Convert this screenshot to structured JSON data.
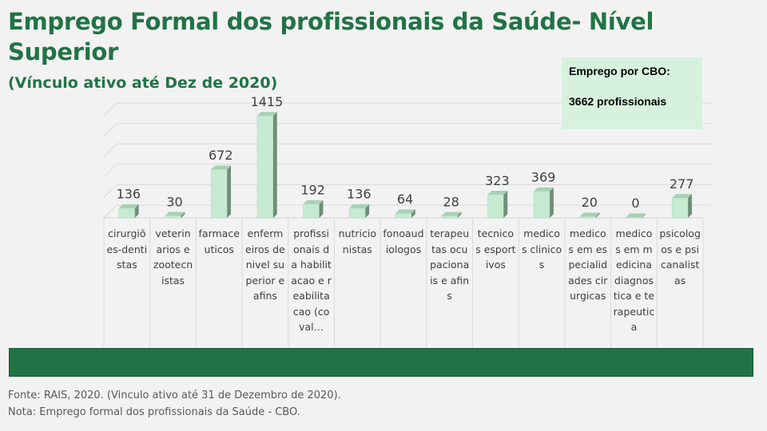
{
  "header": {
    "title": "Emprego Formal dos profissionais da Saúde-  Nível Superior",
    "subtitle": "(Vínculo ativo até Dez de 2020)"
  },
  "infobox": {
    "line1": "Emprego por CBO:",
    "line2": "3662 profissionais"
  },
  "footer": {
    "source": "Fonte: RAIS, 2020. (Vinculo ativo até 31 de Dezembro de 2020).",
    "note": "Nota: Emprego formal dos profissionais da Saúde - CBO."
  },
  "colors": {
    "title": "#217346",
    "bar_front": "#c6e9d2",
    "bar_side": "#6e8f78",
    "bar_top": "#a7d1b4",
    "band": "#217346"
  },
  "chart_data": {
    "type": "bar",
    "categories": [
      "cirurgiões-dentistas",
      "veterinarios e zootecnistas",
      "farmaceuticos",
      "enfermeiros de nivel superior e afins",
      "profissionais da habilitacao e reabilitacao (coval…",
      "nutricionistas",
      "fonoaudiologos",
      "terapeutas ocupacionais e afins",
      "tecnicos esportivos",
      "medicos clinicos",
      "medicos em especialidades cirurgicas",
      "medicos em medicina diagnostica e terapeutica",
      "psicologos e psicanalistas"
    ],
    "values": [
      136,
      30,
      672,
      1415,
      192,
      136,
      64,
      28,
      323,
      369,
      20,
      0,
      277
    ],
    "data_labels": [
      "136",
      "30",
      "672",
      "1415",
      "192",
      "136",
      "64",
      "28",
      "323",
      "369",
      "20",
      "0",
      "277"
    ],
    "ylim": [
      0,
      1415
    ],
    "grid": true,
    "legend": "none",
    "three_d": true
  }
}
